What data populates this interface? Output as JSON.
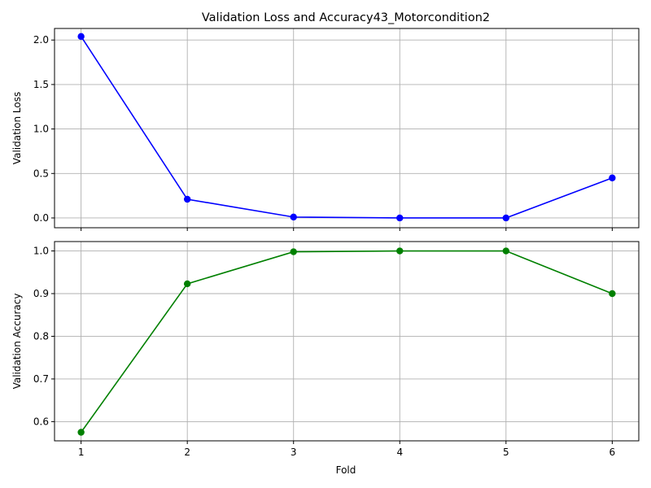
{
  "chart_data": {
    "type": "line",
    "title": "Validation Loss and Accuracy43_Motorcondition2",
    "xlabel": "Fold",
    "x": [
      1,
      2,
      3,
      4,
      5,
      6
    ],
    "grid": true,
    "subplots": [
      {
        "ylabel": "Validation Loss",
        "color": "#0000ff",
        "ylim": [
          -0.11,
          2.13
        ],
        "yticks": [
          0.0,
          0.5,
          1.0,
          1.5,
          2.0
        ],
        "ytick_labels": [
          "0.0",
          "0.5",
          "1.0",
          "1.5",
          "2.0"
        ],
        "values": [
          2.04,
          0.21,
          0.01,
          0.0,
          0.0,
          0.45
        ]
      },
      {
        "ylabel": "Validation Accuracy",
        "color": "#008000",
        "ylim": [
          0.555,
          1.022
        ],
        "yticks": [
          0.6,
          0.7,
          0.8,
          0.9,
          1.0
        ],
        "ytick_labels": [
          "0.6",
          "0.7",
          "0.8",
          "0.9",
          "1.0"
        ],
        "values": [
          0.575,
          0.923,
          0.998,
          1.0,
          1.0,
          0.9
        ]
      }
    ],
    "xtick_labels": [
      "1",
      "2",
      "3",
      "4",
      "5",
      "6"
    ]
  }
}
